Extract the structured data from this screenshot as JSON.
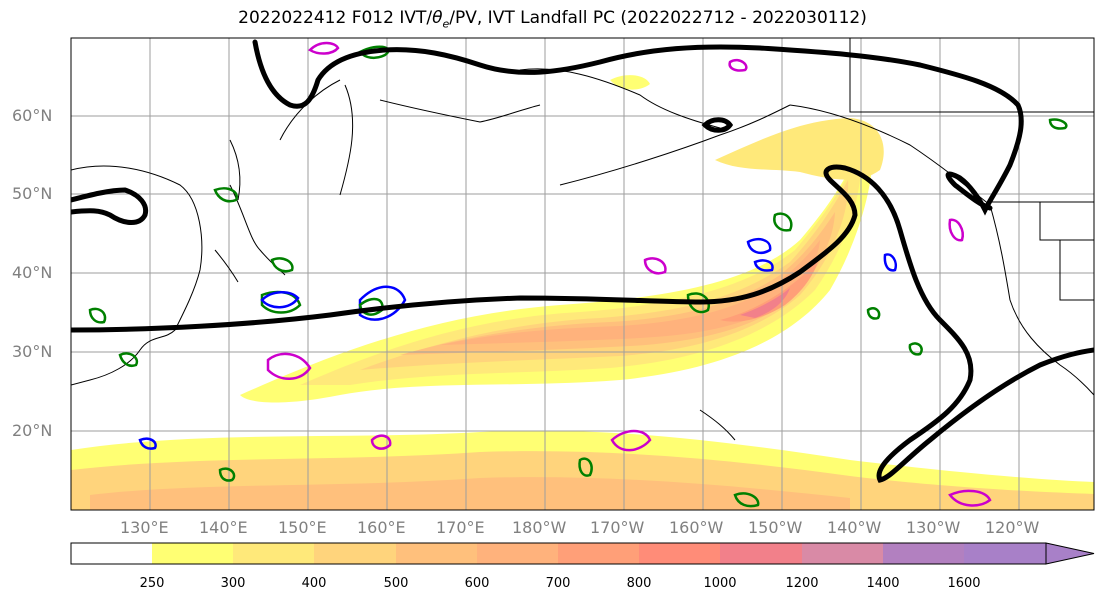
{
  "title_main": "2022022412 F012 IVT/",
  "title_symbol": "θ",
  "title_sub": "e",
  "title_rest": "/PV, IVT Landfall PC (2022022712 - 2022030112)",
  "map": {
    "lat_labels": [
      "60°N",
      "50°N",
      "40°N",
      "30°N",
      "20°N"
    ],
    "lon_labels": [
      "130°E",
      "140°E",
      "150°E",
      "160°E",
      "170°E",
      "180°W",
      "170°W",
      "160°W",
      "150°W",
      "140°W",
      "130°W",
      "120°W"
    ],
    "colors": {
      "pv_contour": "#000000",
      "green_contour": "#008000",
      "blue_contour": "#0000ff",
      "magenta_contour": "#cc00cc",
      "coastline": "#000000",
      "gridline": "#9e9e9e"
    }
  },
  "colorbar": {
    "ticks": [
      "250",
      "300",
      "400",
      "500",
      "600",
      "700",
      "800",
      "1000",
      "1200",
      "1400",
      "1600"
    ],
    "colors": [
      "#ffffff",
      "#ffff73",
      "#ffe97a",
      "#ffd47c",
      "#ffc07c",
      "#ffb27c",
      "#ff9f78",
      "#ff8c78",
      "#f2808a",
      "#d98aa6",
      "#b280c0",
      "#a880c8"
    ]
  }
}
